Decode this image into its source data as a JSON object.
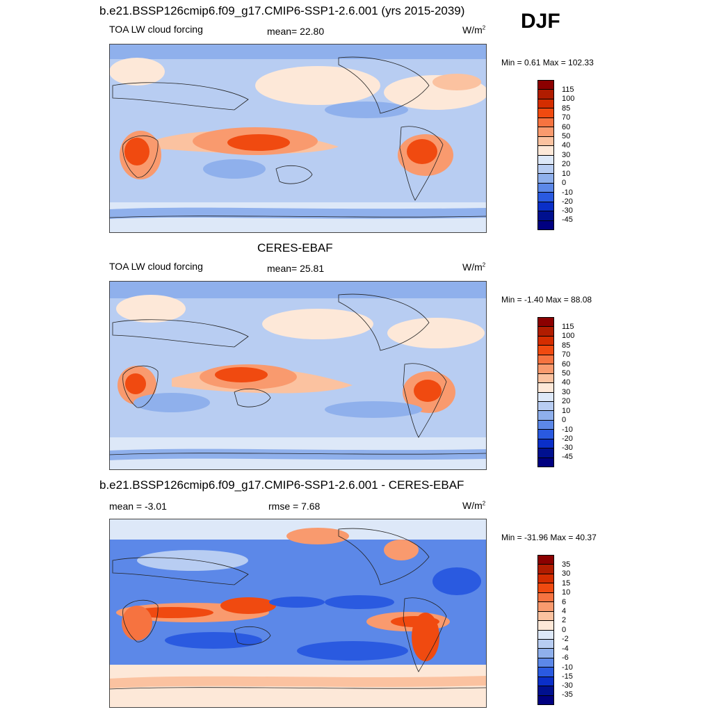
{
  "season": "DJF",
  "panels": [
    {
      "title": "b.e21.BSSP126cmip6.f09_g17.CMIP6-SSP1-2.6.001 (yrs 2015-2039)",
      "left_label": "TOA LW cloud forcing",
      "center_label": "mean=  22.80",
      "units": "W/m",
      "units_sup": "2",
      "minmax": "Min =   0.61 Max = 102.33",
      "colorbar": [
        "115",
        "100",
        "85",
        "70",
        "60",
        "50",
        "40",
        "30",
        "20",
        "10",
        "0",
        "-10",
        "-20",
        "-30",
        "-45"
      ]
    },
    {
      "title": "CERES-EBAF",
      "left_label": "TOA LW cloud forcing",
      "center_label": "mean=  25.81",
      "units": "W/m",
      "units_sup": "2",
      "minmax": "Min =  -1.40 Max =  88.08",
      "colorbar": [
        "115",
        "100",
        "85",
        "70",
        "60",
        "50",
        "40",
        "30",
        "20",
        "10",
        "0",
        "-10",
        "-20",
        "-30",
        "-45"
      ]
    },
    {
      "title": "b.e21.BSSP126cmip6.f09_g17.CMIP6-SSP1-2.6.001 - CERES-EBAF",
      "left_label": "mean =  -3.01",
      "center_label": "rmse =   7.68",
      "units": "W/m",
      "units_sup": "2",
      "minmax": "Min = -31.96 Max =  40.37",
      "colorbar": [
        "35",
        "30",
        "15",
        "10",
        "6",
        "4",
        "2",
        "0",
        "-2",
        "-4",
        "-6",
        "-10",
        "-15",
        "-30",
        "-35"
      ]
    }
  ],
  "chart_data": [
    {
      "type": "heatmap",
      "title": "b.e21.BSSP126cmip6.f09_g17.CMIP6-SSP1-2.6.001 (yrs 2015-2039)",
      "variable": "TOA LW cloud forcing",
      "units": "W/m2",
      "mean": 22.8,
      "min": 0.61,
      "max": 102.33,
      "levels": [
        115,
        100,
        85,
        70,
        60,
        50,
        40,
        30,
        20,
        10,
        0,
        -10,
        -20,
        -30,
        -45
      ],
      "colors": [
        "#8b0000",
        "#b01c00",
        "#d42d00",
        "#f04a10",
        "#f67340",
        "#f99a6e",
        "#fbc2a0",
        "#fde8d8",
        "#dde8f8",
        "#b8cdf2",
        "#8fb0ec",
        "#5c88e8",
        "#2a5ae0",
        "#0a2fc8",
        "#00108f",
        "#000080"
      ]
    },
    {
      "type": "heatmap",
      "title": "CERES-EBAF",
      "variable": "TOA LW cloud forcing",
      "units": "W/m2",
      "mean": 25.81,
      "min": -1.4,
      "max": 88.08,
      "levels": [
        115,
        100,
        85,
        70,
        60,
        50,
        40,
        30,
        20,
        10,
        0,
        -10,
        -20,
        -30,
        -45
      ],
      "colors": [
        "#8b0000",
        "#b01c00",
        "#d42d00",
        "#f04a10",
        "#f67340",
        "#f99a6e",
        "#fbc2a0",
        "#fde8d8",
        "#dde8f8",
        "#b8cdf2",
        "#8fb0ec",
        "#5c88e8",
        "#2a5ae0",
        "#0a2fc8",
        "#00108f",
        "#000080"
      ]
    },
    {
      "type": "heatmap",
      "title": "b.e21.BSSP126cmip6.f09_g17.CMIP6-SSP1-2.6.001 - CERES-EBAF",
      "units": "W/m2",
      "mean": -3.01,
      "rmse": 7.68,
      "min": -31.96,
      "max": 40.37,
      "levels": [
        35,
        30,
        15,
        10,
        6,
        4,
        2,
        0,
        -2,
        -4,
        -6,
        -10,
        -15,
        -30,
        -35
      ],
      "colors": [
        "#8b0000",
        "#b01c00",
        "#d42d00",
        "#f04a10",
        "#f67340",
        "#f99a6e",
        "#fbc2a0",
        "#fde8d8",
        "#dde8f8",
        "#b8cdf2",
        "#8fb0ec",
        "#5c88e8",
        "#2a5ae0",
        "#0a2fc8",
        "#00108f",
        "#000080"
      ]
    }
  ]
}
